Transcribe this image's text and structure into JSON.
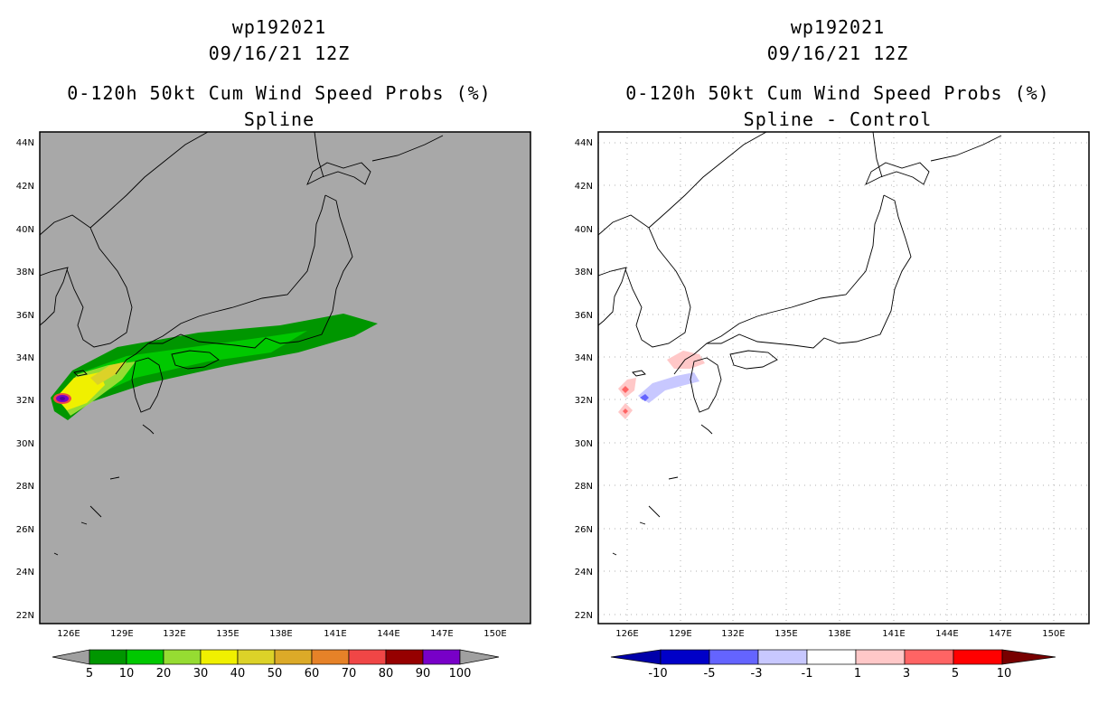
{
  "colors": {
    "land_left": "#a8a8a8",
    "map_bg_right": "#ffffff",
    "coast": "#000000",
    "grid": "#b0b0b0"
  },
  "map": {
    "lat_labels": [
      "44N",
      "42N",
      "40N",
      "38N",
      "36N",
      "34N",
      "32N",
      "30N",
      "28N",
      "26N",
      "24N",
      "22N"
    ],
    "lon_labels": [
      "126E",
      "129E",
      "132E",
      "135E",
      "138E",
      "141E",
      "144E",
      "147E",
      "150E"
    ]
  },
  "left_panel": {
    "title": {
      "line1": "wp192021",
      "line2": "09/16/21 12Z",
      "line3": "0-120h 50kt Cum Wind Speed Probs (%)",
      "line4": "Spline"
    },
    "legend": {
      "labels": [
        "5",
        "10",
        "20",
        "30",
        "40",
        "50",
        "60",
        "70",
        "80",
        "90",
        "100"
      ],
      "colors": [
        "#009600",
        "#00c800",
        "#96dc32",
        "#f0f000",
        "#dcd228",
        "#dcaa28",
        "#e68228",
        "#f04646",
        "#960000",
        "#7800c8"
      ],
      "under_color": "#a0a0a0",
      "over_color": "#a0a0a0"
    }
  },
  "right_panel": {
    "title": {
      "line1": "wp192021",
      "line2": "09/16/21 12Z",
      "line3": "0-120h 50kt Cum Wind Speed Probs (%)",
      "line4": "Spline - Control"
    },
    "legend": {
      "labels": [
        "-10",
        "-5",
        "-3",
        "-1",
        "1",
        "3",
        "5",
        "10"
      ],
      "colors": [
        "#0000c8",
        "#6464ff",
        "#c8c8ff",
        "#ffffff",
        "#ffc8c8",
        "#ff6464",
        "#ff0000"
      ],
      "under_color": "#0000aa",
      "over_color": "#780000"
    }
  }
}
